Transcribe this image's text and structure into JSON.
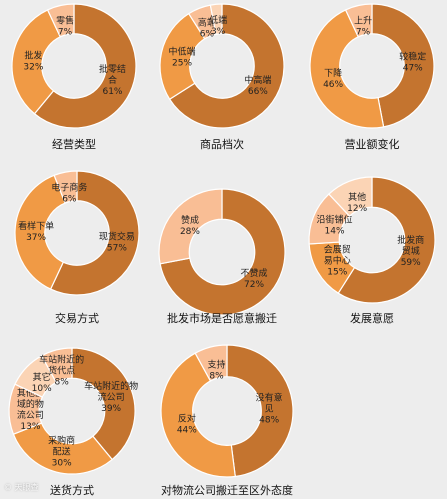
{
  "colors": {
    "background": "#ededed",
    "dark": "#c4742f",
    "medium": "#f09a45",
    "light": "#f9be95",
    "pale": "#fbd4b5"
  },
  "watermark": "© 天眼查",
  "chart_data": [
    {
      "type": "pie",
      "title": "经营类型",
      "slices": [
        {
          "label": "批零结合",
          "value": 61,
          "value_text": "61%",
          "color": "#c4742f"
        },
        {
          "label": "批发",
          "value": 32,
          "value_text": "32%",
          "color": "#f09a45"
        },
        {
          "label": "零售",
          "value": 7,
          "value_text": "7%",
          "color": "#f9be95"
        }
      ]
    },
    {
      "type": "pie",
      "title": "商品档次",
      "slices": [
        {
          "label": "中高端",
          "value": 66,
          "value_text": "66%",
          "color": "#c4742f"
        },
        {
          "label": "中低端",
          "value": 25,
          "value_text": "25%",
          "color": "#f09a45"
        },
        {
          "label": "高端",
          "value": 6,
          "value_text": "6%",
          "color": "#f9be95"
        },
        {
          "label": "低端",
          "value": 3,
          "value_text": "3%",
          "color": "#fbd4b5"
        }
      ]
    },
    {
      "type": "pie",
      "title": "营业额变化",
      "slices": [
        {
          "label": "较稳定",
          "value": 47,
          "value_text": "47%",
          "color": "#c4742f"
        },
        {
          "label": "下降",
          "value": 46,
          "value_text": "46%",
          "color": "#f09a45"
        },
        {
          "label": "上升",
          "value": 7,
          "value_text": "7%",
          "color": "#f9be95"
        }
      ]
    },
    {
      "type": "pie",
      "title": "交易方式",
      "slices": [
        {
          "label": "现货交易",
          "value": 57,
          "value_text": "57%",
          "color": "#c4742f"
        },
        {
          "label": "看样下单",
          "value": 37,
          "value_text": "37%",
          "color": "#f09a45"
        },
        {
          "label": "电子商务",
          "value": 6,
          "value_text": "6%",
          "color": "#f9be95"
        }
      ]
    },
    {
      "type": "pie",
      "title": "批发市场是否愿意搬迁",
      "slices": [
        {
          "label": "不赞成",
          "value": 72,
          "value_text": "72%",
          "color": "#c4742f"
        },
        {
          "label": "赞成",
          "value": 28,
          "value_text": "28%",
          "color": "#f9be95"
        }
      ]
    },
    {
      "type": "pie",
      "title": "发展意愿",
      "slices": [
        {
          "label": "批发商贸城",
          "value": 59,
          "value_text": "59%",
          "color": "#c4742f"
        },
        {
          "label": "会展贸易中心",
          "value": 15,
          "value_text": "15%",
          "color": "#f09a45"
        },
        {
          "label": "沿街铺位",
          "value": 14,
          "value_text": "14%",
          "color": "#f9be95"
        },
        {
          "label": "其他",
          "value": 12,
          "value_text": "12%",
          "color": "#fbd4b5"
        }
      ]
    },
    {
      "type": "pie",
      "title": "送货方式",
      "slices": [
        {
          "label": "车站附近的物流公司",
          "value": 39,
          "value_text": "39%",
          "color": "#c4742f"
        },
        {
          "label": "采购商配送",
          "value": 30,
          "value_text": "30%",
          "color": "#f09a45"
        },
        {
          "label": "其他区域的物流公司",
          "value": 13,
          "value_text": "13%",
          "color": "#f9be95"
        },
        {
          "label": "其它",
          "value": 10,
          "value_text": "10%",
          "color": "#fbd4b5"
        },
        {
          "label": "车站附近的货代点",
          "value": 8,
          "value_text": "8%",
          "color": "#f9be95"
        }
      ]
    },
    {
      "type": "pie",
      "title": "对物流公司搬迁至区外态度",
      "slices": [
        {
          "label": "没有意见",
          "value": 48,
          "value_text": "48%",
          "color": "#c4742f"
        },
        {
          "label": "反对",
          "value": 44,
          "value_text": "44%",
          "color": "#f09a45"
        },
        {
          "label": "支持",
          "value": 8,
          "value_text": "8%",
          "color": "#f9be95"
        }
      ]
    }
  ]
}
